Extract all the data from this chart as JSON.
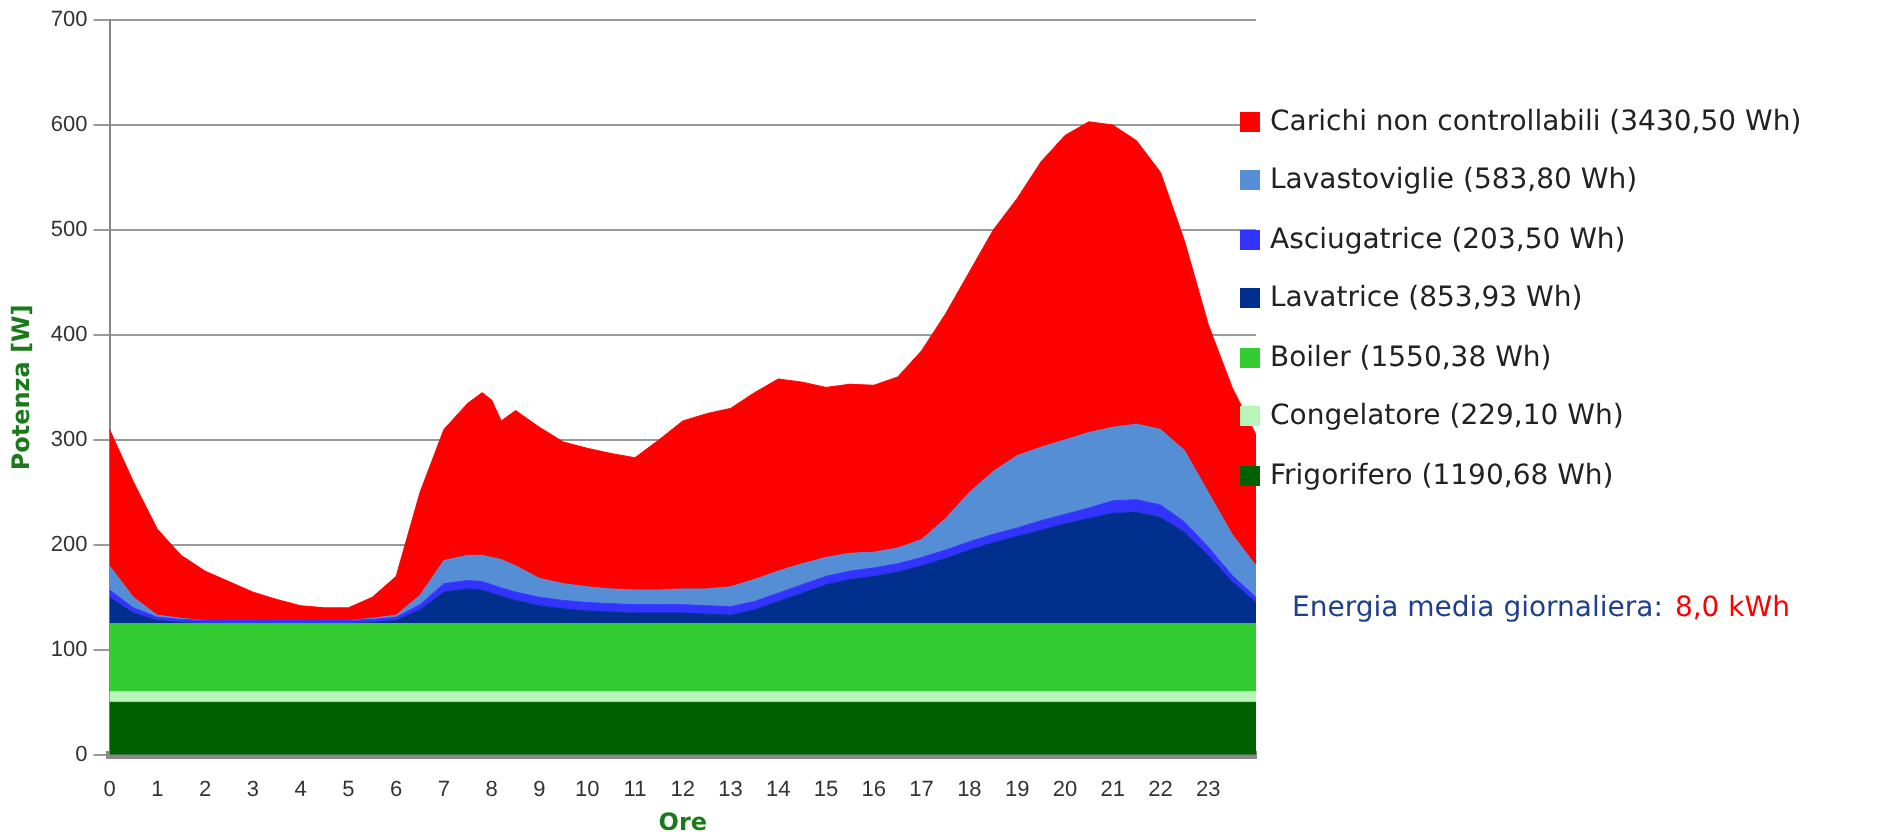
{
  "chart_data": {
    "type": "area",
    "stacked": true,
    "xlabel": "Ore",
    "ylabel": "Potenza [W]",
    "x": [
      0,
      0.5,
      1,
      1.5,
      2,
      2.5,
      3,
      3.5,
      4,
      4.5,
      5,
      5.5,
      6,
      6.5,
      7,
      7.5,
      7.8,
      8,
      8.2,
      8.5,
      9,
      9.5,
      10,
      10.5,
      11,
      11.5,
      12,
      12.5,
      13,
      13.5,
      14,
      14.5,
      15,
      15.5,
      16,
      16.5,
      17,
      17.5,
      18,
      18.5,
      19,
      19.5,
      20,
      20.5,
      21,
      21.5,
      22,
      22.5,
      23,
      23.5,
      24
    ],
    "xlim": [
      0,
      24
    ],
    "xticks": [
      0,
      1,
      2,
      3,
      4,
      5,
      6,
      7,
      8,
      9,
      10,
      11,
      12,
      13,
      14,
      15,
      16,
      17,
      18,
      19,
      20,
      21,
      22,
      23
    ],
    "ylim": [
      0,
      700
    ],
    "yticks": [
      0,
      100,
      200,
      300,
      400,
      500,
      600,
      700
    ],
    "grid": "y",
    "legend": "right",
    "marker": "none",
    "series": [
      {
        "name": "Frigorifero (1190,68 Wh)",
        "color": "#006100",
        "values": [
          50,
          50,
          50,
          50,
          50,
          50,
          50,
          50,
          50,
          50,
          50,
          50,
          50,
          50,
          50,
          50,
          50,
          50,
          50,
          50,
          50,
          50,
          50,
          50,
          50,
          50,
          50,
          50,
          50,
          50,
          50,
          50,
          50,
          50,
          50,
          50,
          50,
          50,
          50,
          50,
          50,
          50,
          50,
          50,
          50,
          50,
          50,
          50,
          50,
          50,
          50
        ]
      },
      {
        "name": "Congelatore (229,10 Wh)",
        "color": "#b8f5b8",
        "values": [
          10,
          10,
          10,
          10,
          10,
          10,
          10,
          10,
          10,
          10,
          10,
          10,
          10,
          10,
          10,
          10,
          10,
          10,
          10,
          10,
          10,
          10,
          10,
          10,
          10,
          10,
          10,
          10,
          10,
          10,
          10,
          10,
          10,
          10,
          10,
          10,
          10,
          10,
          10,
          10,
          10,
          10,
          10,
          10,
          10,
          10,
          10,
          10,
          10,
          10,
          10
        ]
      },
      {
        "name": "Boiler (1550,38 Wh)",
        "color": "#33cc33",
        "values": [
          65,
          65,
          65,
          65,
          65,
          65,
          65,
          65,
          65,
          65,
          65,
          65,
          65,
          65,
          65,
          65,
          65,
          65,
          65,
          65,
          65,
          65,
          65,
          65,
          65,
          65,
          65,
          65,
          65,
          65,
          65,
          65,
          65,
          65,
          65,
          65,
          65,
          65,
          65,
          65,
          65,
          65,
          65,
          65,
          65,
          65,
          65,
          65,
          65,
          65,
          65
        ]
      },
      {
        "name": "Lavatrice (853,93 Wh)",
        "color": "#002f8e",
        "values": [
          25,
          10,
          3,
          1,
          0,
          0,
          0,
          0,
          0,
          0,
          0,
          1,
          3,
          13,
          30,
          33,
          32,
          29,
          26,
          22,
          17,
          14,
          12,
          11,
          10,
          10,
          10,
          9,
          8,
          13,
          21,
          29,
          37,
          42,
          45,
          49,
          55,
          62,
          70,
          77,
          83,
          89,
          95,
          100,
          105,
          106,
          101,
          87,
          65,
          40,
          20
        ]
      },
      {
        "name": "Asciugatrice (203,50 Wh)",
        "color": "#3333ff",
        "values": [
          7,
          5,
          3,
          3,
          3,
          3,
          3,
          3,
          3,
          3,
          3,
          3,
          3,
          5,
          8,
          8,
          8,
          8,
          8,
          8,
          8,
          8,
          8,
          8,
          8,
          8,
          8,
          8,
          8,
          8,
          8,
          8,
          8,
          8,
          8,
          8,
          8,
          8,
          8,
          8,
          8,
          9,
          9,
          10,
          12,
          12,
          12,
          10,
          8,
          6,
          5
        ]
      },
      {
        "name": "Lavastoviglie (583,80 Wh)",
        "color": "#558ed5",
        "values": [
          23,
          10,
          2,
          1,
          0,
          0,
          0,
          0,
          0,
          0,
          0,
          1,
          2,
          9,
          22,
          24,
          25,
          26,
          27,
          25,
          18,
          16,
          15,
          14,
          14,
          14,
          15,
          16,
          19,
          21,
          21,
          20,
          18,
          17,
          15,
          15,
          17,
          30,
          47,
          60,
          69,
          70,
          71,
          72,
          70,
          72,
          72,
          68,
          52,
          39,
          30
        ]
      },
      {
        "name": "Carichi non controllabili (3430,50 Wh)",
        "color": "#ff0000",
        "values": [
          130,
          110,
          82,
          60,
          47,
          37,
          27,
          20,
          14,
          12,
          12,
          20,
          37,
          98,
          125,
          145,
          155,
          150,
          132,
          148,
          144,
          135,
          132,
          129,
          126,
          143,
          160,
          167,
          170,
          178,
          183,
          173,
          162,
          161,
          159,
          163,
          180,
          195,
          210,
          230,
          245,
          272,
          290,
          296,
          288,
          270,
          245,
          200,
          160,
          140,
          125
        ]
      }
    ],
    "annotations": [
      "Energia media giornaliera:",
      "8,0 kWh"
    ]
  }
}
